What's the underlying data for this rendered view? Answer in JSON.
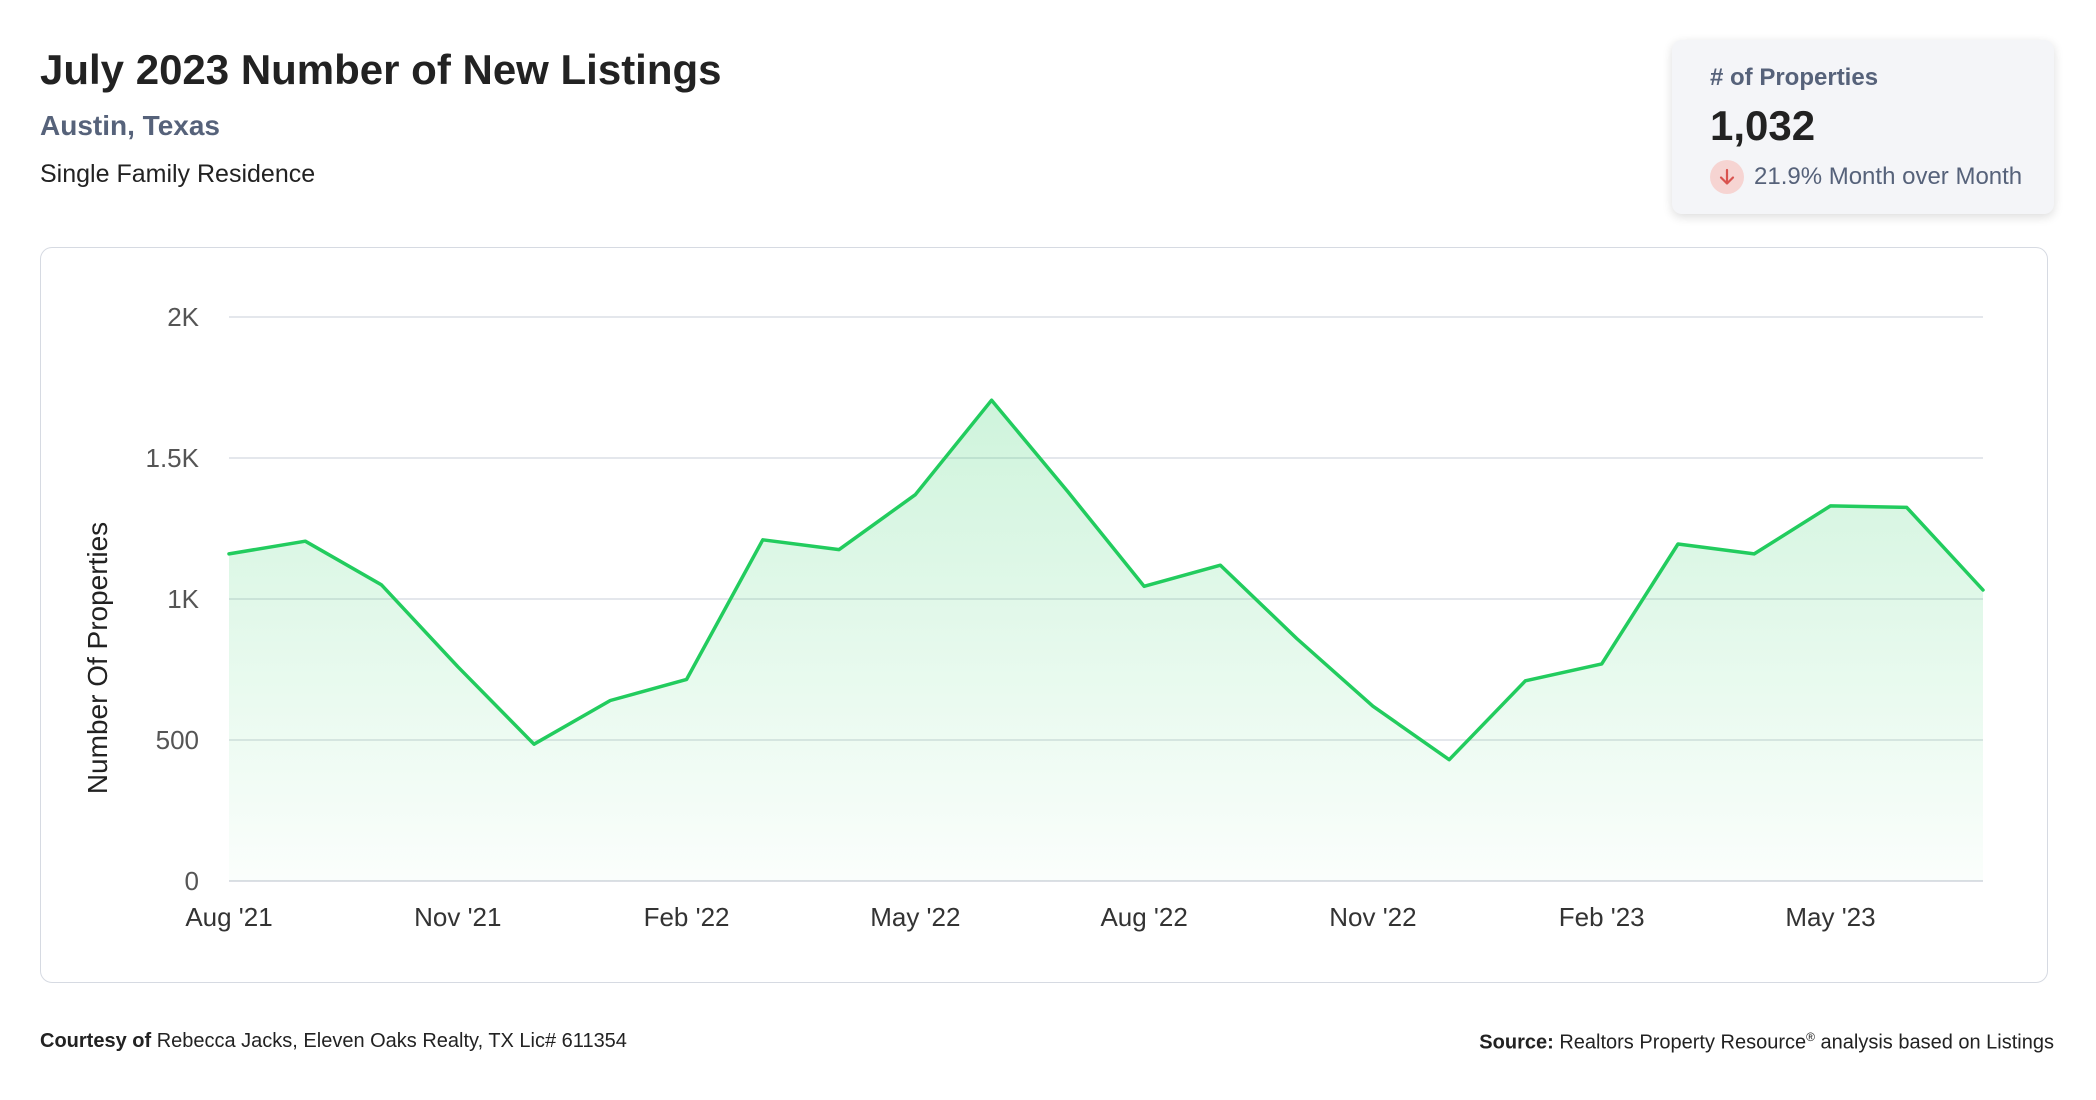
{
  "header": {
    "title": "July 2023 Number of New Listings",
    "location": "Austin, Texas",
    "property_type": "Single Family Residence"
  },
  "stat_card": {
    "label": "# of Properties",
    "value": "1,032",
    "change": "21.9% Month over Month",
    "direction_icon": "arrow-down-icon",
    "change_color": "#d9534f"
  },
  "footer": {
    "courtesy_label": "Courtesy of",
    "courtesy_text": "Rebecca Jacks, Eleven Oaks Realty, TX Lic# 611354",
    "source_label": "Source:",
    "source_text_1": "Realtors Property Resource",
    "source_registered": "®",
    "source_text_2": "analysis based on Listings"
  },
  "colors": {
    "line": "#22cc5e",
    "fill": "#22cc5e",
    "grid": "#dcdfe5"
  },
  "chart_data": {
    "type": "area",
    "ylabel": "Number Of Properties",
    "xlabel": "",
    "ylim": [
      0,
      2000
    ],
    "yticks": [
      0,
      500,
      1000,
      1500,
      2000
    ],
    "ytick_labels": [
      "0",
      "500",
      "1K",
      "1.5K",
      "2K"
    ],
    "x": [
      "Aug '21",
      "Sep '21",
      "Oct '21",
      "Nov '21",
      "Dec '21",
      "Jan '22",
      "Feb '22",
      "Mar '22",
      "Apr '22",
      "May '22",
      "Jun '22",
      "Jul '22",
      "Aug '22",
      "Sep '22",
      "Oct '22",
      "Nov '22",
      "Dec '22",
      "Jan '23",
      "Feb '23",
      "Mar '23",
      "Apr '23",
      "May '23",
      "Jun '23",
      "Jul '23"
    ],
    "xtick_labels": [
      "Aug '21",
      "Nov '21",
      "Feb '22",
      "May '22",
      "Aug '22",
      "Nov '22",
      "Feb '23",
      "May '23"
    ],
    "grid": true,
    "legend": "none",
    "series": [
      {
        "values": [
          1160,
          1205,
          1050,
          760,
          485,
          640,
          715,
          1210,
          1175,
          1370,
          1705,
          1380,
          1045,
          1120,
          860,
          620,
          430,
          710,
          770,
          1195,
          1160,
          1330,
          1325,
          1032
        ]
      }
    ]
  }
}
